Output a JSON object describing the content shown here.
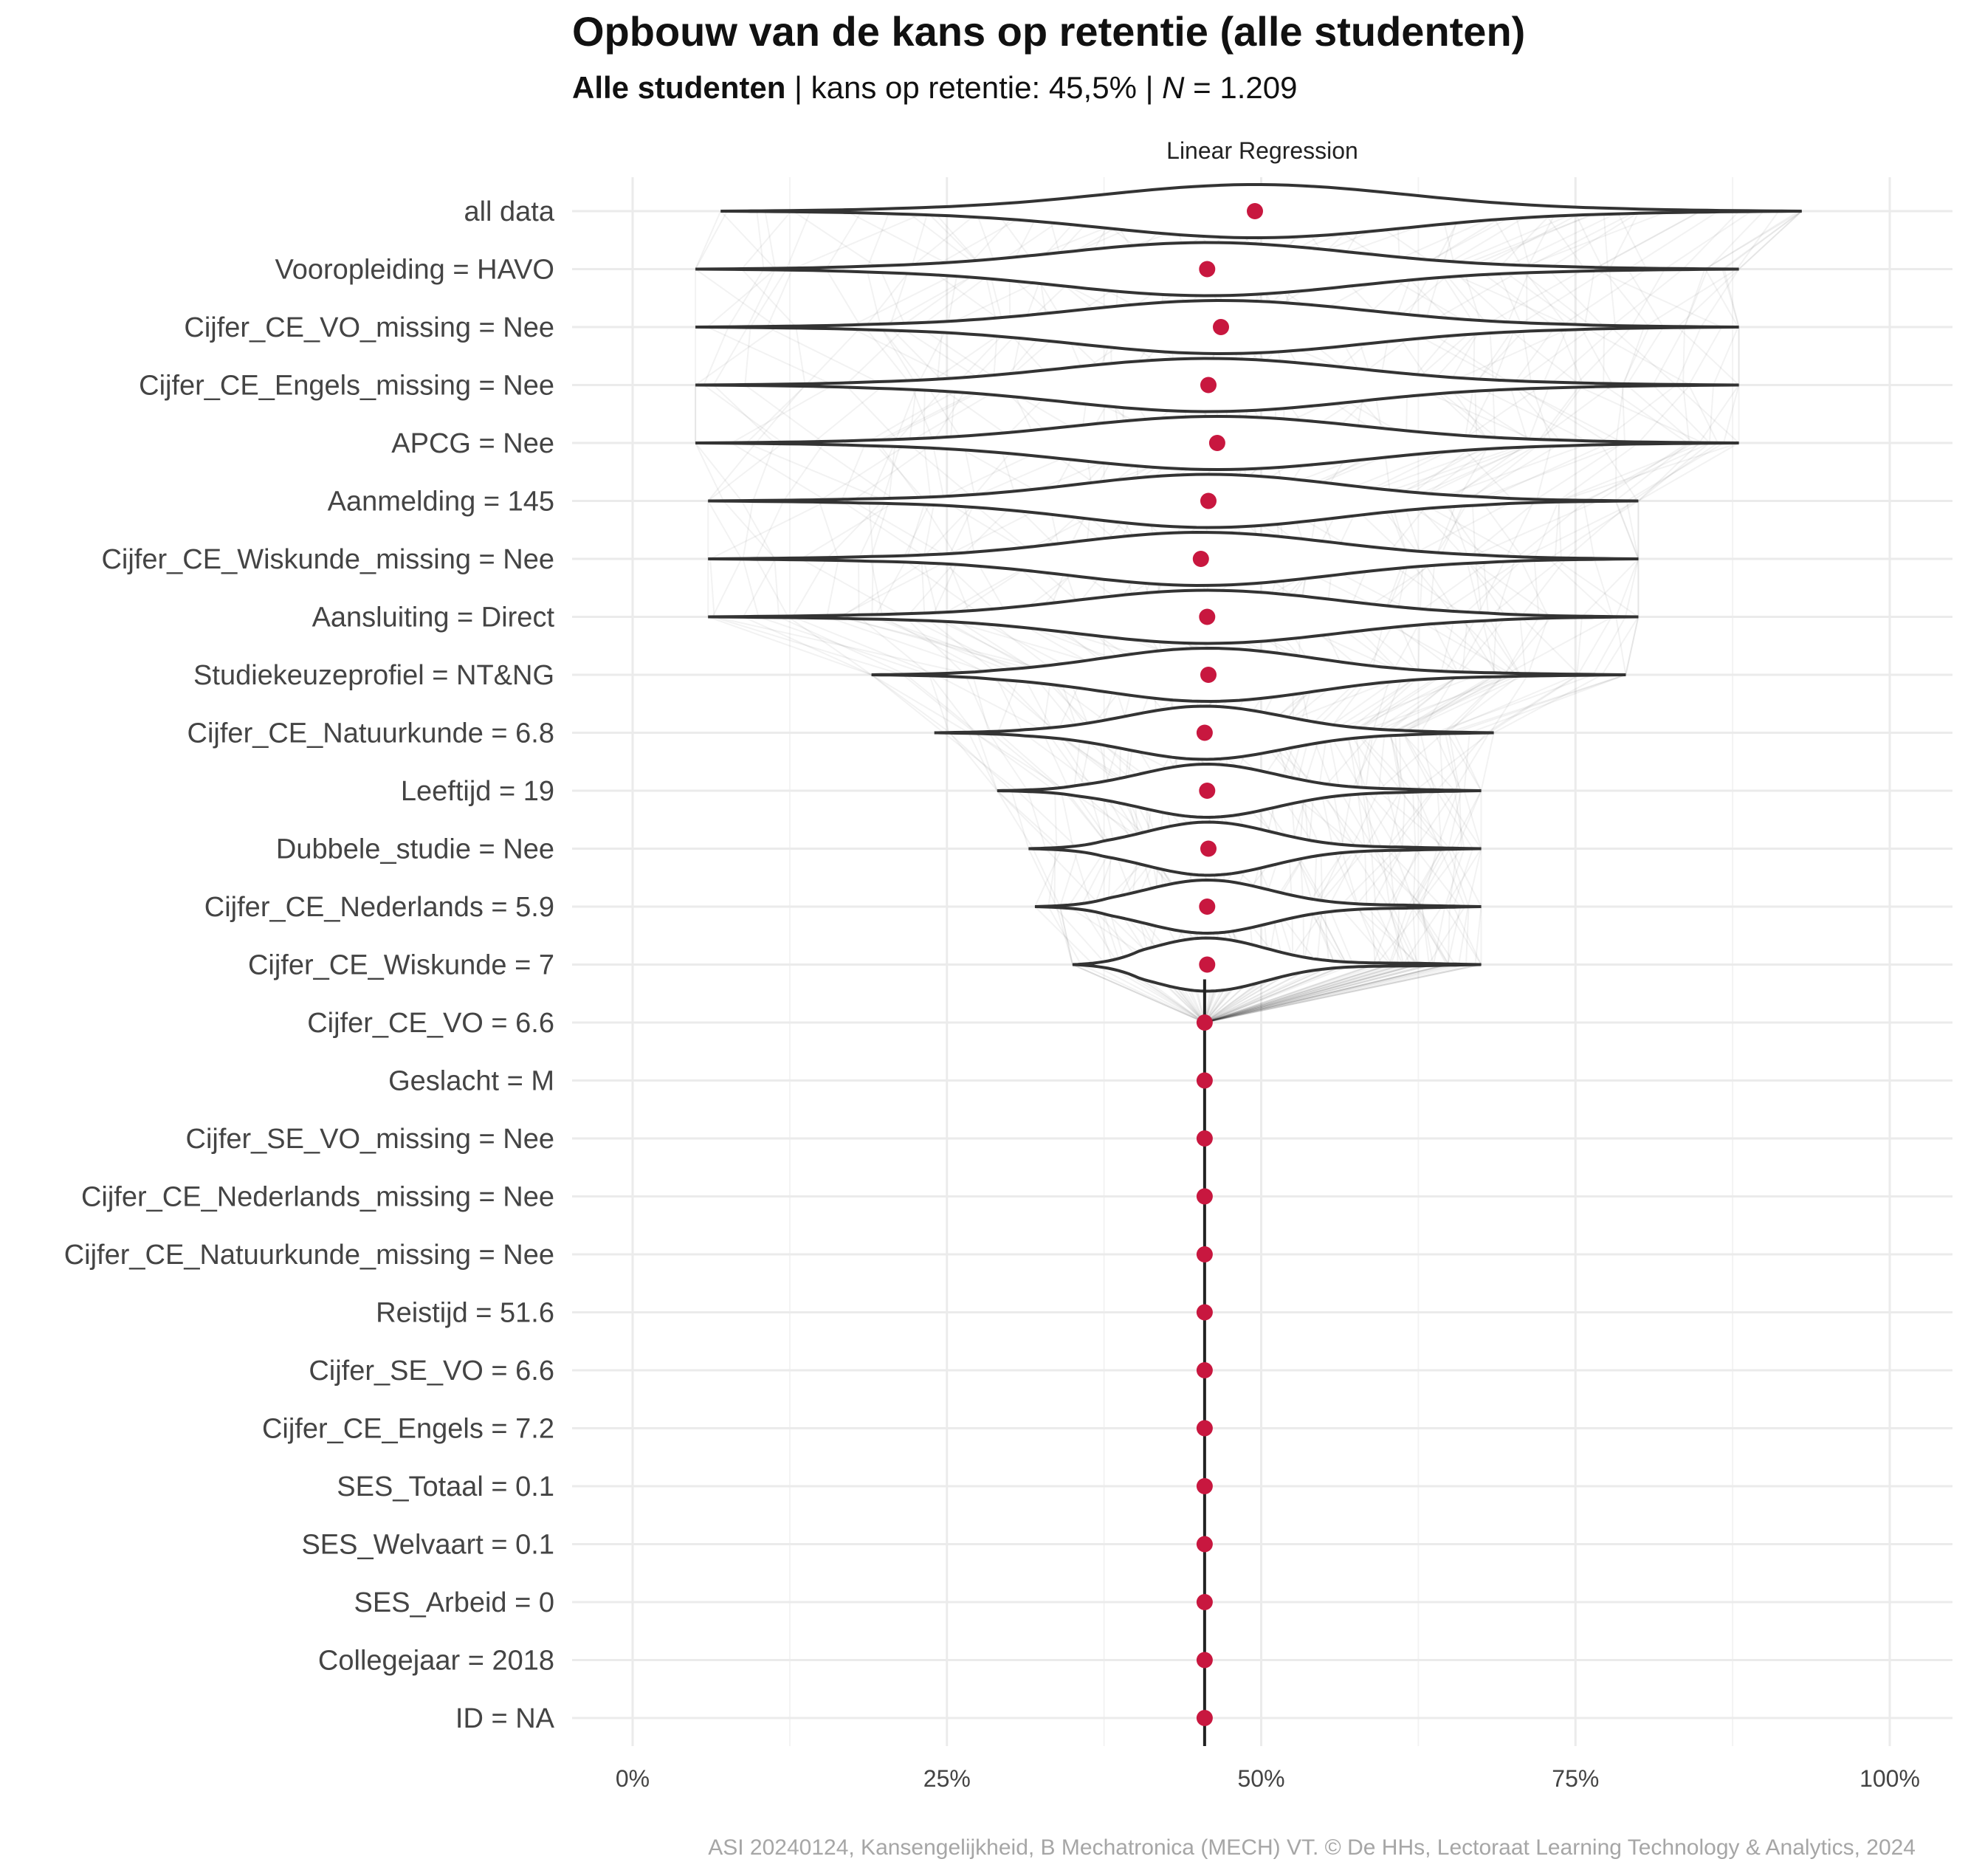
{
  "chart_data": {
    "type": "violin",
    "title": "Opbouw van de kans op retentie (alle studenten)",
    "subtitle": {
      "group": "Alle studenten",
      "sep1": " | ",
      "retention_text": "kans op retentie: 45,5%",
      "sep2": " | ",
      "n_symbol": "N",
      "n_text": " = 1.209"
    },
    "facet_label": "Linear Regression",
    "caption": "ASI 20240124, Kansengelijkheid, B Mechatronica (MECH) VT. © De HHs, Lectoraat Learning Technology & Analytics, 2024",
    "x_ticks": [
      "0%",
      "25%",
      "50%",
      "75%",
      "100%"
    ],
    "x_tick_values": [
      0,
      25,
      50,
      75,
      100
    ],
    "xlim": [
      0,
      100
    ],
    "categories": [
      "all data",
      "Vooropleiding = HAVO",
      "Cijfer_CE_VO_missing = Nee",
      "Cijfer_CE_Engels_missing = Nee",
      "APCG = Nee",
      "Aanmelding = 145",
      "Cijfer_CE_Wiskunde_missing = Nee",
      "Aansluiting = Direct",
      "Studiekeuzeprofiel = NT&NG",
      "Cijfer_CE_Natuurkunde = 6.8",
      "Leeftijd = 19",
      "Dubbele_studie = Nee",
      "Cijfer_CE_Nederlands = 5.9",
      "Cijfer_CE_Wiskunde = 7",
      "Cijfer_CE_VO = 6.6",
      "Geslacht = M",
      "Cijfer_SE_VO_missing = Nee",
      "Cijfer_CE_Nederlands_missing = Nee",
      "Cijfer_CE_Natuurkunde_missing = Nee",
      "Reistijd = 51.6",
      "Cijfer_SE_VO = 6.6",
      "Cijfer_CE_Engels = 7.2",
      "SES_Totaal = 0.1",
      "SES_Welvaart = 0.1",
      "SES_Arbeid = 0",
      "Collegejaar = 2018",
      "ID = NA"
    ],
    "mean_values": [
      49.5,
      45.7,
      46.8,
      45.8,
      46.5,
      45.8,
      45.2,
      45.7,
      45.8,
      45.5,
      45.7,
      45.8,
      45.7,
      45.7,
      45.5,
      45.5,
      45.5,
      45.5,
      45.5,
      45.5,
      45.5,
      45.5,
      45.5,
      45.5,
      45.5,
      45.5,
      45.5
    ],
    "range_min": [
      7,
      5,
      5,
      5,
      5,
      6,
      6,
      6,
      19,
      24,
      29,
      31.5,
      32,
      35,
      45.5,
      45.5,
      45.5,
      45.5,
      45.5,
      45.5,
      45.5,
      45.5,
      45.5,
      45.5,
      45.5,
      45.5,
      45.5
    ],
    "range_max": [
      93,
      88,
      88,
      88,
      88,
      80,
      80,
      80,
      79,
      68.5,
      67.5,
      67.5,
      67.5,
      67.5,
      45.5,
      45.5,
      45.5,
      45.5,
      45.5,
      45.5,
      45.5,
      45.5,
      45.5,
      45.5,
      45.5,
      45.5,
      45.5
    ],
    "colors": {
      "point": "#c8173f",
      "violin_stroke": "#333333",
      "grid": "#ebebeb"
    },
    "legend": "none"
  }
}
